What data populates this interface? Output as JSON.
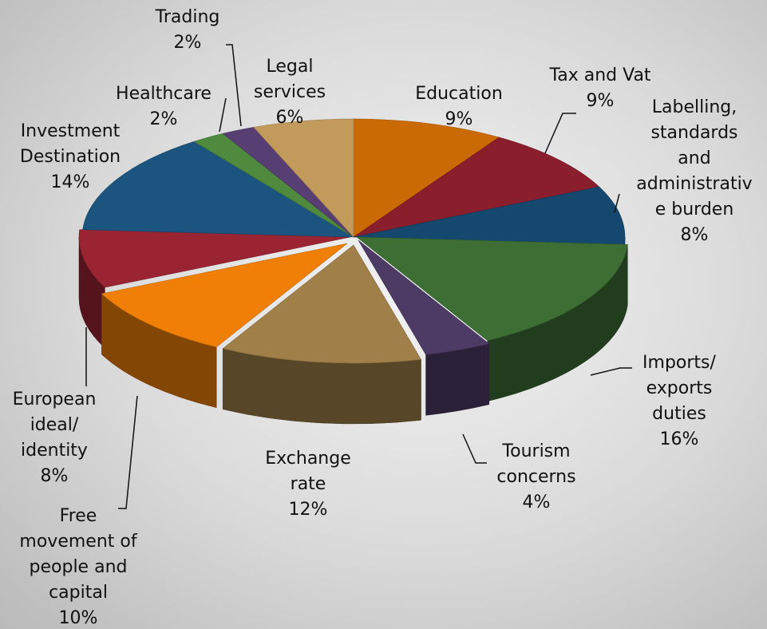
{
  "chart_data": {
    "type": "pie",
    "title": "",
    "style": "3d-exploded",
    "legend": "none",
    "slices": [
      {
        "label": [
          "Education"
        ],
        "value": 9,
        "value_label": "9%",
        "color": "#c96a05"
      },
      {
        "label": [
          "Tax and Vat"
        ],
        "value": 9,
        "value_label": "9%",
        "color": "#8b1e2c"
      },
      {
        "label": [
          "Labelling,",
          "standards",
          "and",
          "administrativ",
          "e burden"
        ],
        "value": 8,
        "value_label": "8%",
        "color": "#14486e"
      },
      {
        "label": [
          "Imports/",
          "exports",
          "duties"
        ],
        "value": 16,
        "value_label": "16%",
        "color": "#3d6f35"
      },
      {
        "label": [
          "Tourism",
          "concerns"
        ],
        "value": 4,
        "value_label": "4%",
        "color": "#4d3b66"
      },
      {
        "label": [
          "Exchange",
          "rate"
        ],
        "value": 12,
        "value_label": "12%",
        "color": "#a08048"
      },
      {
        "label": [
          "Free",
          "movement of",
          "people and",
          "capital"
        ],
        "value": 10,
        "value_label": "10%",
        "color": "#f07f08"
      },
      {
        "label": [
          "European",
          "ideal/",
          "identity"
        ],
        "value": 8,
        "value_label": "8%",
        "color": "#9b2432"
      },
      {
        "label": [
          "Investment",
          "Destination"
        ],
        "value": 14,
        "value_label": "14%",
        "color": "#1b557f"
      },
      {
        "label": [
          "Healthcare"
        ],
        "value": 2,
        "value_label": "2%",
        "color": "#4f8a3e"
      },
      {
        "label": [
          "Trading"
        ],
        "value": 2,
        "value_label": "2%",
        "color": "#583f73"
      },
      {
        "label": [
          "Legal",
          "services"
        ],
        "value": 6,
        "value_label": "6%",
        "color": "#c29a5c"
      }
    ]
  }
}
